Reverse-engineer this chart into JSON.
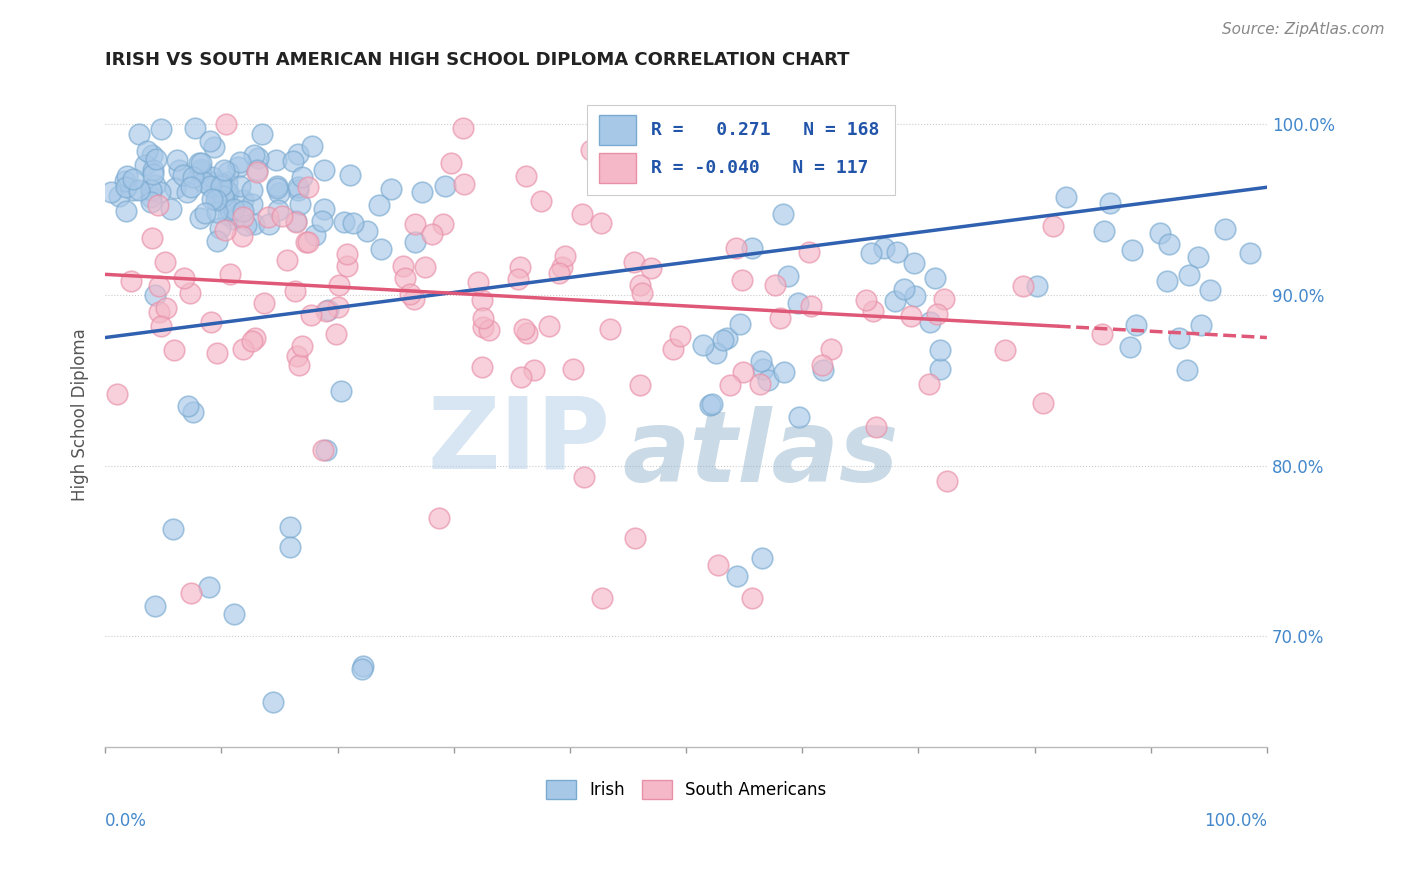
{
  "title": "IRISH VS SOUTH AMERICAN HIGH SCHOOL DIPLOMA CORRELATION CHART",
  "source": "Source: ZipAtlas.com",
  "ylabel": "High School Diploma",
  "ytick_values": [
    0.7,
    0.8,
    0.9,
    1.0
  ],
  "xlim": [
    0.0,
    1.0
  ],
  "ylim": [
    0.635,
    1.025
  ],
  "irish_color_face": "#A8C8E8",
  "irish_color_edge": "#7AAAD0",
  "south_american_color_face": "#F4B8C8",
  "south_american_color_edge": "#E890A8",
  "irish_R": 0.271,
  "irish_N": 168,
  "south_american_R": -0.04,
  "south_american_N": 117,
  "trend_blue": "#3060B0",
  "trend_pink": "#E05878",
  "watermark_zip_color": "#B0C8E0",
  "watermark_atlas_color": "#8BADD0",
  "title_fontsize": 13,
  "source_fontsize": 11,
  "tick_label_fontsize": 12,
  "legend_fontsize": 13
}
